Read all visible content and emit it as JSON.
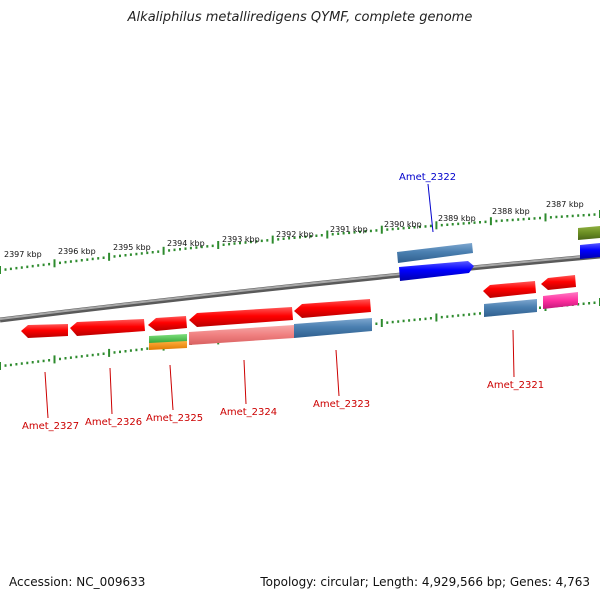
{
  "title": "Alkaliphilus metalliredigens QYMF, complete genome",
  "footer": {
    "accession": "Accession: NC_009633",
    "summary": "Topology: circular; Length: 4,929,566 bp; Genes: 4,763"
  },
  "scale_labels": [
    "2397 kbp",
    "2396 kbp",
    "2395 kbp",
    "2394 kbp",
    "2393 kbp",
    "2392 kbp",
    "2391 kbp",
    "2390 kbp",
    "2389 kbp",
    "2388 kbp",
    "2387 kbp"
  ],
  "gene_labels": [
    {
      "id": "lbl-2322",
      "text": "Amet_2322",
      "color": "#0000cc"
    },
    {
      "id": "lbl-2327",
      "text": "Amet_2327",
      "color": "#cc0000"
    },
    {
      "id": "lbl-2326",
      "text": "Amet_2326",
      "color": "#cc0000"
    },
    {
      "id": "lbl-2325",
      "text": "Amet_2325",
      "color": "#cc0000"
    },
    {
      "id": "lbl-2324",
      "text": "Amet_2324",
      "color": "#cc0000"
    },
    {
      "id": "lbl-2323",
      "text": "Amet_2323",
      "color": "#cc0000"
    },
    {
      "id": "lbl-2321",
      "text": "Amet_2321",
      "color": "#cc0000"
    }
  ],
  "colors": {
    "backbone": "#808080",
    "tick": "#2e8b2e",
    "forward_gene": "#0000ee",
    "reverse_gene": "#ee0000",
    "blue_feature": "#4a7fb0",
    "pink_feature": "#e83a9a",
    "olive_feature": "#6b8e23"
  }
}
